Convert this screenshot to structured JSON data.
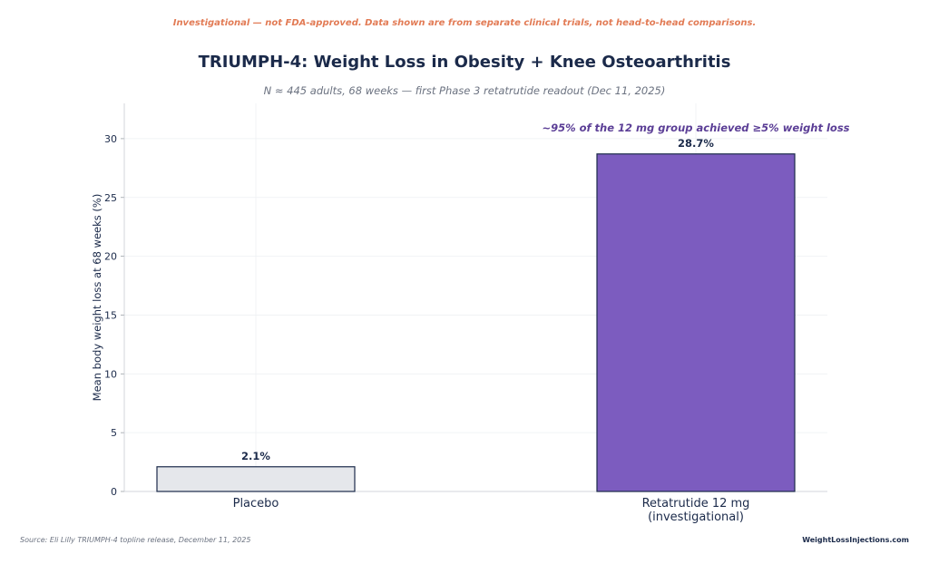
{
  "header": {
    "disclaimer": "Investigational — not FDA-approved. Data shown are from separate clinical trials, not head-to-head comparisons.",
    "title": "TRIUMPH-4: Weight Loss in Obesity + Knee Osteoarthritis",
    "subtitle": "N ≈ 445 adults, 68 weeks — first Phase 3 retatrutide readout (Dec 11, 2025)"
  },
  "footer": {
    "source": "Source: Eli Lilly TRIUMPH-4 topline release, December 11, 2025",
    "brand": "WeightLossInjections.com"
  },
  "colors": {
    "placebo_fill": "#e5e7eb",
    "placebo_edge": "#1b2a4a",
    "treatment_fill": "#7c5cbf",
    "treatment_edge": "#1b2a4a",
    "annotation": "#5b3e96",
    "text_dark": "#1b2a4a"
  },
  "chart_data": {
    "type": "bar",
    "categories": [
      "Placebo",
      "Retatrutide 12 mg\n(investigational)"
    ],
    "values": [
      2.1,
      28.7
    ],
    "data_labels": [
      "2.1%",
      "28.7%"
    ],
    "ylabel": "Mean body weight loss at 68 weeks (%)",
    "ylim": [
      0,
      33
    ],
    "yticks": [
      0,
      5,
      10,
      15,
      20,
      25,
      30
    ],
    "grid": true,
    "annotation": "~95% of the 12 mg group achieved ≥5% weight loss"
  }
}
